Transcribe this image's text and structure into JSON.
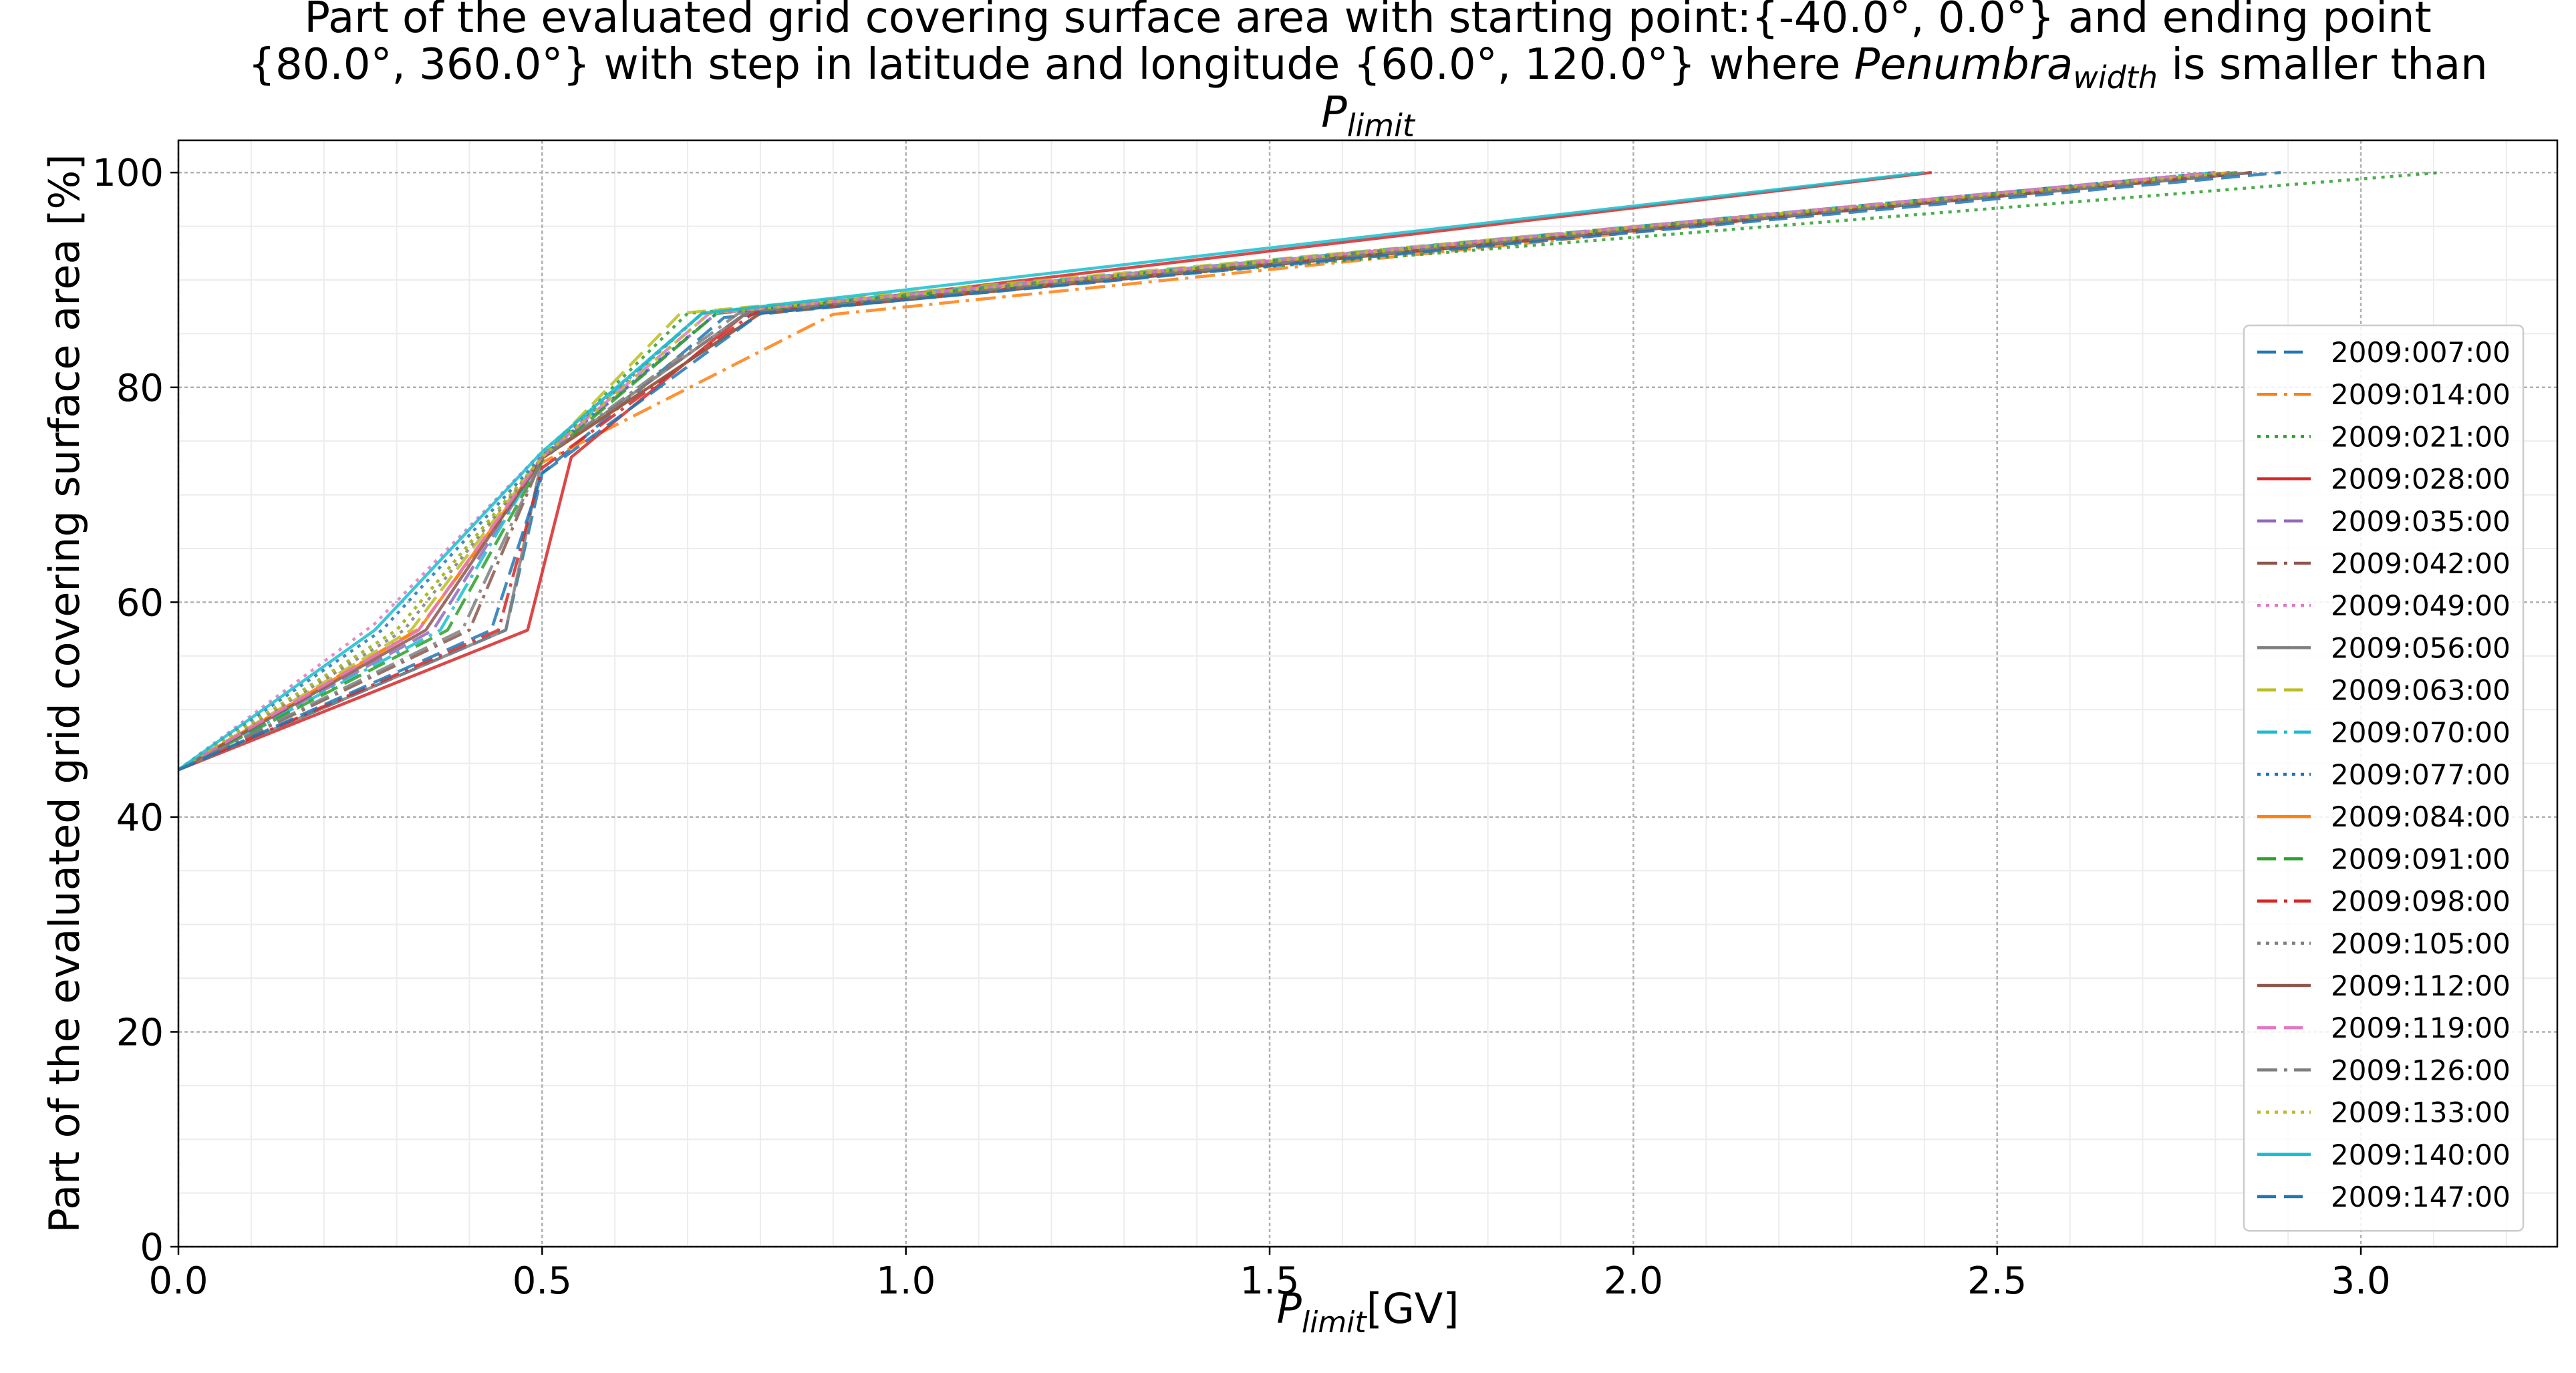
{
  "chart_data": {
    "type": "line",
    "title_lines": [
      {
        "segments": [
          {
            "text": "Part of the evaluated grid covering surface area with starting point:{-40.0°, 0.0°} and ending point"
          }
        ]
      },
      {
        "segments": [
          {
            "text": "{80.0°, 360.0°} with step in latitude and longitude {60.0°, 120.0°} where "
          },
          {
            "text": "Penumbra",
            "italic": true
          },
          {
            "text": "width",
            "italic": true,
            "sub": true
          },
          {
            "text": " is smaller than"
          }
        ]
      },
      {
        "segments": [
          {
            "text": "P",
            "italic": true
          },
          {
            "text": "limit",
            "italic": true,
            "sub": true
          }
        ]
      }
    ],
    "xlabel_parts": {
      "main": "P",
      "sub": "limit",
      "suffix": "[GV]"
    },
    "ylabel": "Part of the evaluated grid covering surface area  [%]",
    "xlim": [
      0,
      3.27
    ],
    "ylim": [
      0,
      103
    ],
    "x_ticks": [
      0.0,
      0.5,
      1.0,
      1.5,
      2.0,
      2.5,
      3.0
    ],
    "x_tick_labels": [
      "0.0",
      "0.5",
      "1.0",
      "1.5",
      "2.0",
      "2.5",
      "3.0"
    ],
    "y_ticks": [
      0,
      20,
      40,
      60,
      80,
      100
    ],
    "y_tick_labels": [
      "0",
      "20",
      "40",
      "60",
      "80",
      "100"
    ],
    "grid": true,
    "minor_grid": true,
    "legend_position": "center-right",
    "series": [
      {
        "name": "2009:007:00",
        "color": "#1f77b4",
        "dash": "dashed",
        "x": [
          0,
          0.45,
          0.5,
          0.75,
          2.8
        ],
        "y": [
          44.4,
          57.4,
          72,
          86.5,
          100
        ]
      },
      {
        "name": "2009:014:00",
        "color": "#ff7f0e",
        "dash": "dashdot",
        "x": [
          0,
          0.33,
          0.5,
          0.9,
          2.8
        ],
        "y": [
          44.4,
          57.5,
          73,
          86.8,
          100
        ]
      },
      {
        "name": "2009:021:00",
        "color": "#2ca02c",
        "dash": "dotted",
        "x": [
          0,
          0.3,
          0.5,
          0.7,
          3.11
        ],
        "y": [
          44.4,
          57.4,
          73.5,
          86.9,
          100
        ]
      },
      {
        "name": "2009:028:00",
        "color": "#d62728",
        "dash": "solid",
        "x": [
          0,
          0.48,
          0.54,
          0.78,
          2.41
        ],
        "y": [
          44.4,
          57.4,
          73.5,
          86.9,
          100
        ]
      },
      {
        "name": "2009:035:00",
        "color": "#9467bd",
        "dash": "dashed",
        "x": [
          0,
          0.35,
          0.5,
          0.74,
          2.8
        ],
        "y": [
          44.4,
          57.4,
          73.4,
          86.9,
          100
        ]
      },
      {
        "name": "2009:042:00",
        "color": "#8c564b",
        "dash": "dashdot",
        "x": [
          0,
          0.4,
          0.5,
          0.78,
          2.85
        ],
        "y": [
          44.4,
          57.4,
          73.4,
          86.9,
          100
        ]
      },
      {
        "name": "2009:049:00",
        "color": "#e377c2",
        "dash": "dotted",
        "x": [
          0,
          0.27,
          0.5,
          0.72,
          2.8
        ],
        "y": [
          44.4,
          58,
          74,
          86.9,
          100
        ]
      },
      {
        "name": "2009:056:00",
        "color": "#7f7f7f",
        "dash": "solid",
        "x": [
          0,
          0.45,
          0.5,
          0.78,
          2.85
        ],
        "y": [
          44.4,
          57.4,
          73.4,
          86.9,
          100
        ]
      },
      {
        "name": "2009:063:00",
        "color": "#bcbd22",
        "dash": "dashed",
        "x": [
          0,
          0.32,
          0.5,
          0.69,
          2.82
        ],
        "y": [
          44.4,
          57.4,
          73.6,
          86.9,
          100
        ]
      },
      {
        "name": "2009:070:00",
        "color": "#17becf",
        "dash": "dashdot",
        "x": [
          0,
          0.36,
          0.5,
          0.72,
          2.8
        ],
        "y": [
          44.4,
          57.4,
          73.6,
          86.9,
          100
        ]
      },
      {
        "name": "2009:077:00",
        "color": "#1f77b4",
        "dash": "dotted",
        "x": [
          0,
          0.28,
          0.5,
          0.74,
          2.8
        ],
        "y": [
          44.4,
          57.4,
          73.6,
          86.9,
          100
        ]
      },
      {
        "name": "2009:084:00",
        "color": "#ff7f0e",
        "dash": "solid",
        "x": [
          0,
          0.33,
          0.5,
          0.8,
          2.82
        ],
        "y": [
          44.4,
          57.4,
          73.4,
          86.9,
          100
        ]
      },
      {
        "name": "2009:091:00",
        "color": "#2ca02c",
        "dash": "dashed",
        "x": [
          0,
          0.37,
          0.5,
          0.74,
          2.83
        ],
        "y": [
          44.4,
          57.4,
          73.2,
          86.9,
          100
        ]
      },
      {
        "name": "2009:098:00",
        "color": "#d62728",
        "dash": "dashdot",
        "x": [
          0,
          0.44,
          0.5,
          0.79,
          2.85
        ],
        "y": [
          44.4,
          57.4,
          72.5,
          86.9,
          100
        ]
      },
      {
        "name": "2009:105:00",
        "color": "#7f7f7f",
        "dash": "dotted",
        "x": [
          0,
          0.31,
          0.5,
          0.72,
          2.82
        ],
        "y": [
          44.4,
          57.4,
          73.5,
          86.9,
          100
        ]
      },
      {
        "name": "2009:112:00",
        "color": "#8c564b",
        "dash": "solid",
        "x": [
          0,
          0.34,
          0.5,
          0.8,
          2.85
        ],
        "y": [
          44.4,
          57.4,
          73.4,
          86.9,
          100
        ]
      },
      {
        "name": "2009:119:00",
        "color": "#e377c2",
        "dash": "dashed",
        "x": [
          0,
          0.33,
          0.5,
          0.73,
          2.8
        ],
        "y": [
          44.4,
          57.4,
          73.5,
          86.9,
          100
        ]
      },
      {
        "name": "2009:126:00",
        "color": "#7f7f7f",
        "dash": "dashdot",
        "x": [
          0,
          0.39,
          0.5,
          0.77,
          2.85
        ],
        "y": [
          44.4,
          57.4,
          73.4,
          86.9,
          100
        ]
      },
      {
        "name": "2009:133:00",
        "color": "#bcbd22",
        "dash": "dotted",
        "x": [
          0,
          0.3,
          0.5,
          0.73,
          2.82
        ],
        "y": [
          44.4,
          57.4,
          73.5,
          86.9,
          100
        ]
      },
      {
        "name": "2009:140:00",
        "color": "#17becf",
        "dash": "solid",
        "x": [
          0,
          0.27,
          0.5,
          0.72,
          2.4
        ],
        "y": [
          44.4,
          57.4,
          74,
          86.9,
          100
        ]
      },
      {
        "name": "2009:147:00",
        "color": "#1f77b4",
        "dash": "dashed",
        "x": [
          0,
          0.43,
          0.5,
          0.8,
          2.89
        ],
        "y": [
          44.4,
          57.4,
          72,
          86.9,
          100
        ]
      }
    ]
  }
}
